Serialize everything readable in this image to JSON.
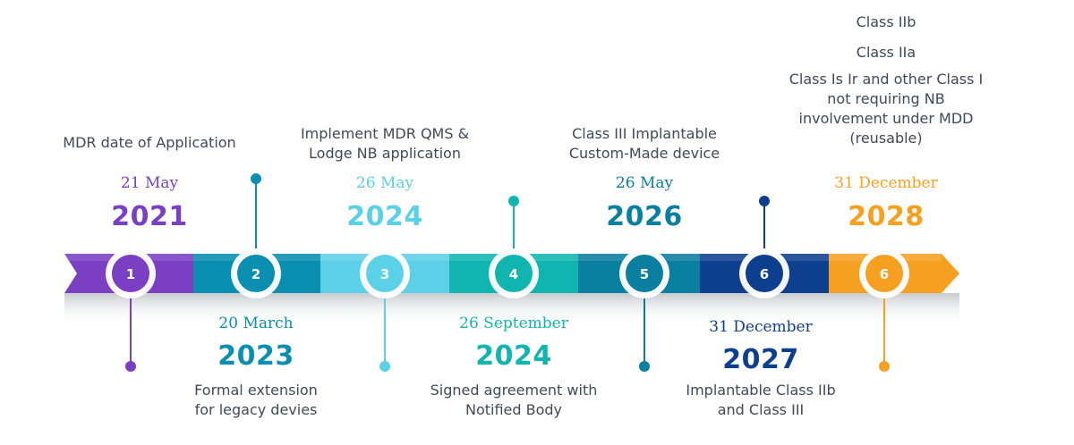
{
  "colors": {
    "c1": "#7b3fc4",
    "c2": "#0a8fb0",
    "c3": "#5cd0e6",
    "c4": "#10b5b0",
    "c5": "#0b7fa0",
    "c6": "#0e3f8f",
    "c7": "#f6a021",
    "text": "#3e4a59"
  },
  "milestones": [
    {
      "number": "1",
      "date": "21 May",
      "year": "2021",
      "description": [
        "MDR date of Application"
      ],
      "position": "above",
      "color": "c1",
      "marker": "below"
    },
    {
      "number": "2",
      "date": "20 March",
      "year": "2023",
      "description": [
        "Formal extension",
        "for legacy devies"
      ],
      "position": "below",
      "color": "c2",
      "marker": "above"
    },
    {
      "number": "3",
      "date": "26 May",
      "year": "2024",
      "description": [
        "Implement MDR QMS &",
        "Lodge NB application"
      ],
      "position": "above",
      "color": "c3",
      "marker": "below"
    },
    {
      "number": "4",
      "date": "26 September",
      "year": "2024",
      "description": [
        "Signed agreement with",
        "Notified Body"
      ],
      "position": "below",
      "color": "c4",
      "marker": "above"
    },
    {
      "number": "5",
      "date": "26 May",
      "year": "2026",
      "description": [
        "Class III Implantable",
        "Custom-Made device"
      ],
      "position": "above",
      "color": "c5",
      "marker": "below"
    },
    {
      "number": "6",
      "date": "31 December",
      "year": "2027",
      "description": [
        "Implantable Class IIb",
        "and Class III"
      ],
      "position": "below",
      "color": "c6",
      "marker": "above"
    },
    {
      "number": "6",
      "date": "31 December",
      "year": "2028",
      "description": [
        "Class IIb",
        "Class IIa",
        "Class Is Ir and other Class I",
        "not requiring NB",
        "involvement under MDD",
        "(reusable)"
      ],
      "position": "above",
      "color": "c7",
      "marker": "below"
    }
  ]
}
